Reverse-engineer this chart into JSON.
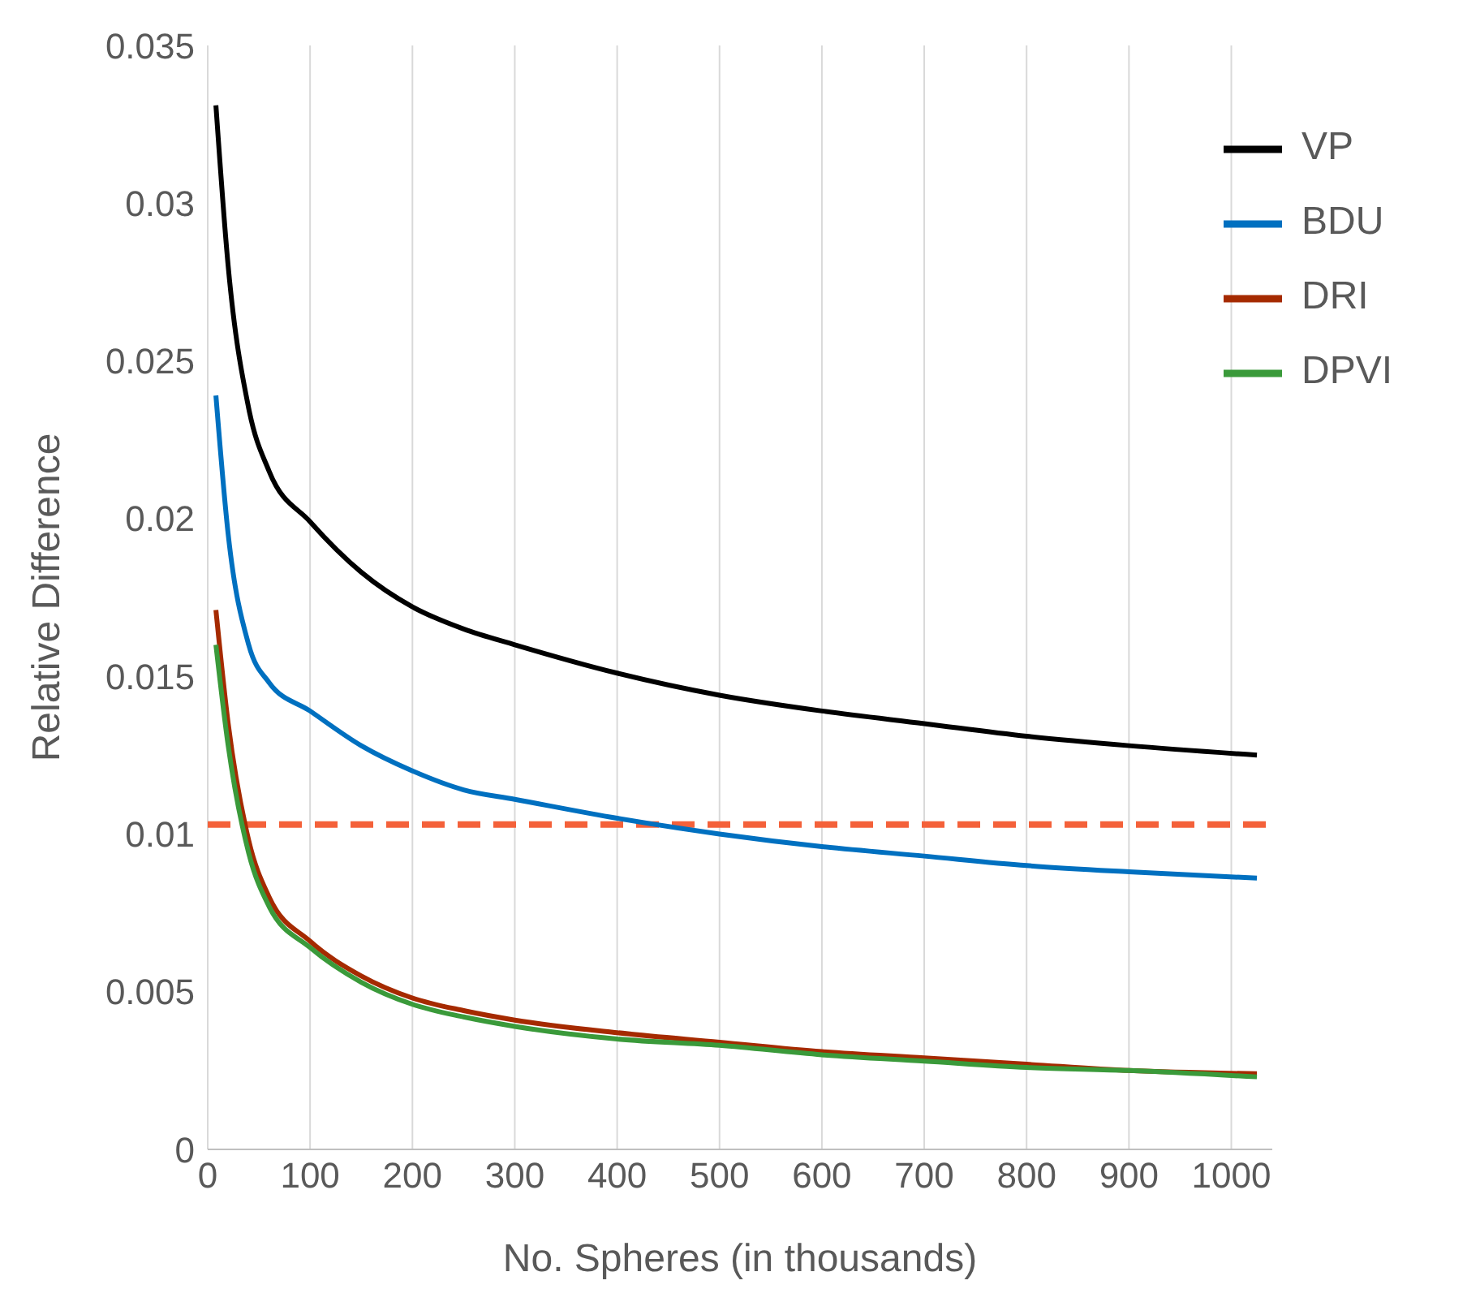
{
  "chart_data": {
    "type": "line",
    "xlabel": "No. Spheres (in thousands)",
    "ylabel": "Relative Difference",
    "x": [
      8,
      20,
      40,
      60,
      100,
      150,
      200,
      250,
      300,
      400,
      500,
      600,
      700,
      800,
      900,
      1025
    ],
    "series": [
      {
        "name": "VP",
        "color": "#000000",
        "values": [
          0.0331,
          0.028,
          0.0235,
          0.0215,
          0.0199,
          0.0183,
          0.0172,
          0.0165,
          0.016,
          0.0151,
          0.0144,
          0.0139,
          0.0135,
          0.0131,
          0.0128,
          0.0125
        ]
      },
      {
        "name": "BDU",
        "color": "#0070c0",
        "values": [
          0.0239,
          0.0195,
          0.016,
          0.0148,
          0.0139,
          0.0128,
          0.012,
          0.0114,
          0.0111,
          0.0105,
          0.01,
          0.0096,
          0.0093,
          0.009,
          0.0088,
          0.0086
        ]
      },
      {
        "name": "DRI",
        "color": "#a52a00",
        "values": [
          0.0171,
          0.0135,
          0.0098,
          0.008,
          0.0066,
          0.0055,
          0.0048,
          0.0044,
          0.0041,
          0.0037,
          0.0034,
          0.0031,
          0.0029,
          0.0027,
          0.0025,
          0.0024
        ]
      },
      {
        "name": "DPVI",
        "color": "#3a9a3a",
        "values": [
          0.016,
          0.0128,
          0.0094,
          0.0077,
          0.0064,
          0.0053,
          0.0046,
          0.0042,
          0.0039,
          0.0035,
          0.0033,
          0.003,
          0.0028,
          0.0026,
          0.0025,
          0.0023
        ]
      }
    ],
    "xlim": [
      0,
      1040
    ],
    "xticks": [
      0,
      100,
      200,
      300,
      400,
      500,
      600,
      700,
      800,
      900,
      1000
    ],
    "ylim": [
      0,
      0.035
    ],
    "yticks": [
      0,
      0.005,
      0.01,
      0.015,
      0.02,
      0.025,
      0.03,
      0.035
    ],
    "ref_lines": [
      {
        "axis": "y",
        "value": 0.0103,
        "color": "#f4613a",
        "line_style": "dashed"
      }
    ],
    "grid": "x",
    "legend": "top right",
    "marker": "none",
    "line_style": "solid"
  }
}
